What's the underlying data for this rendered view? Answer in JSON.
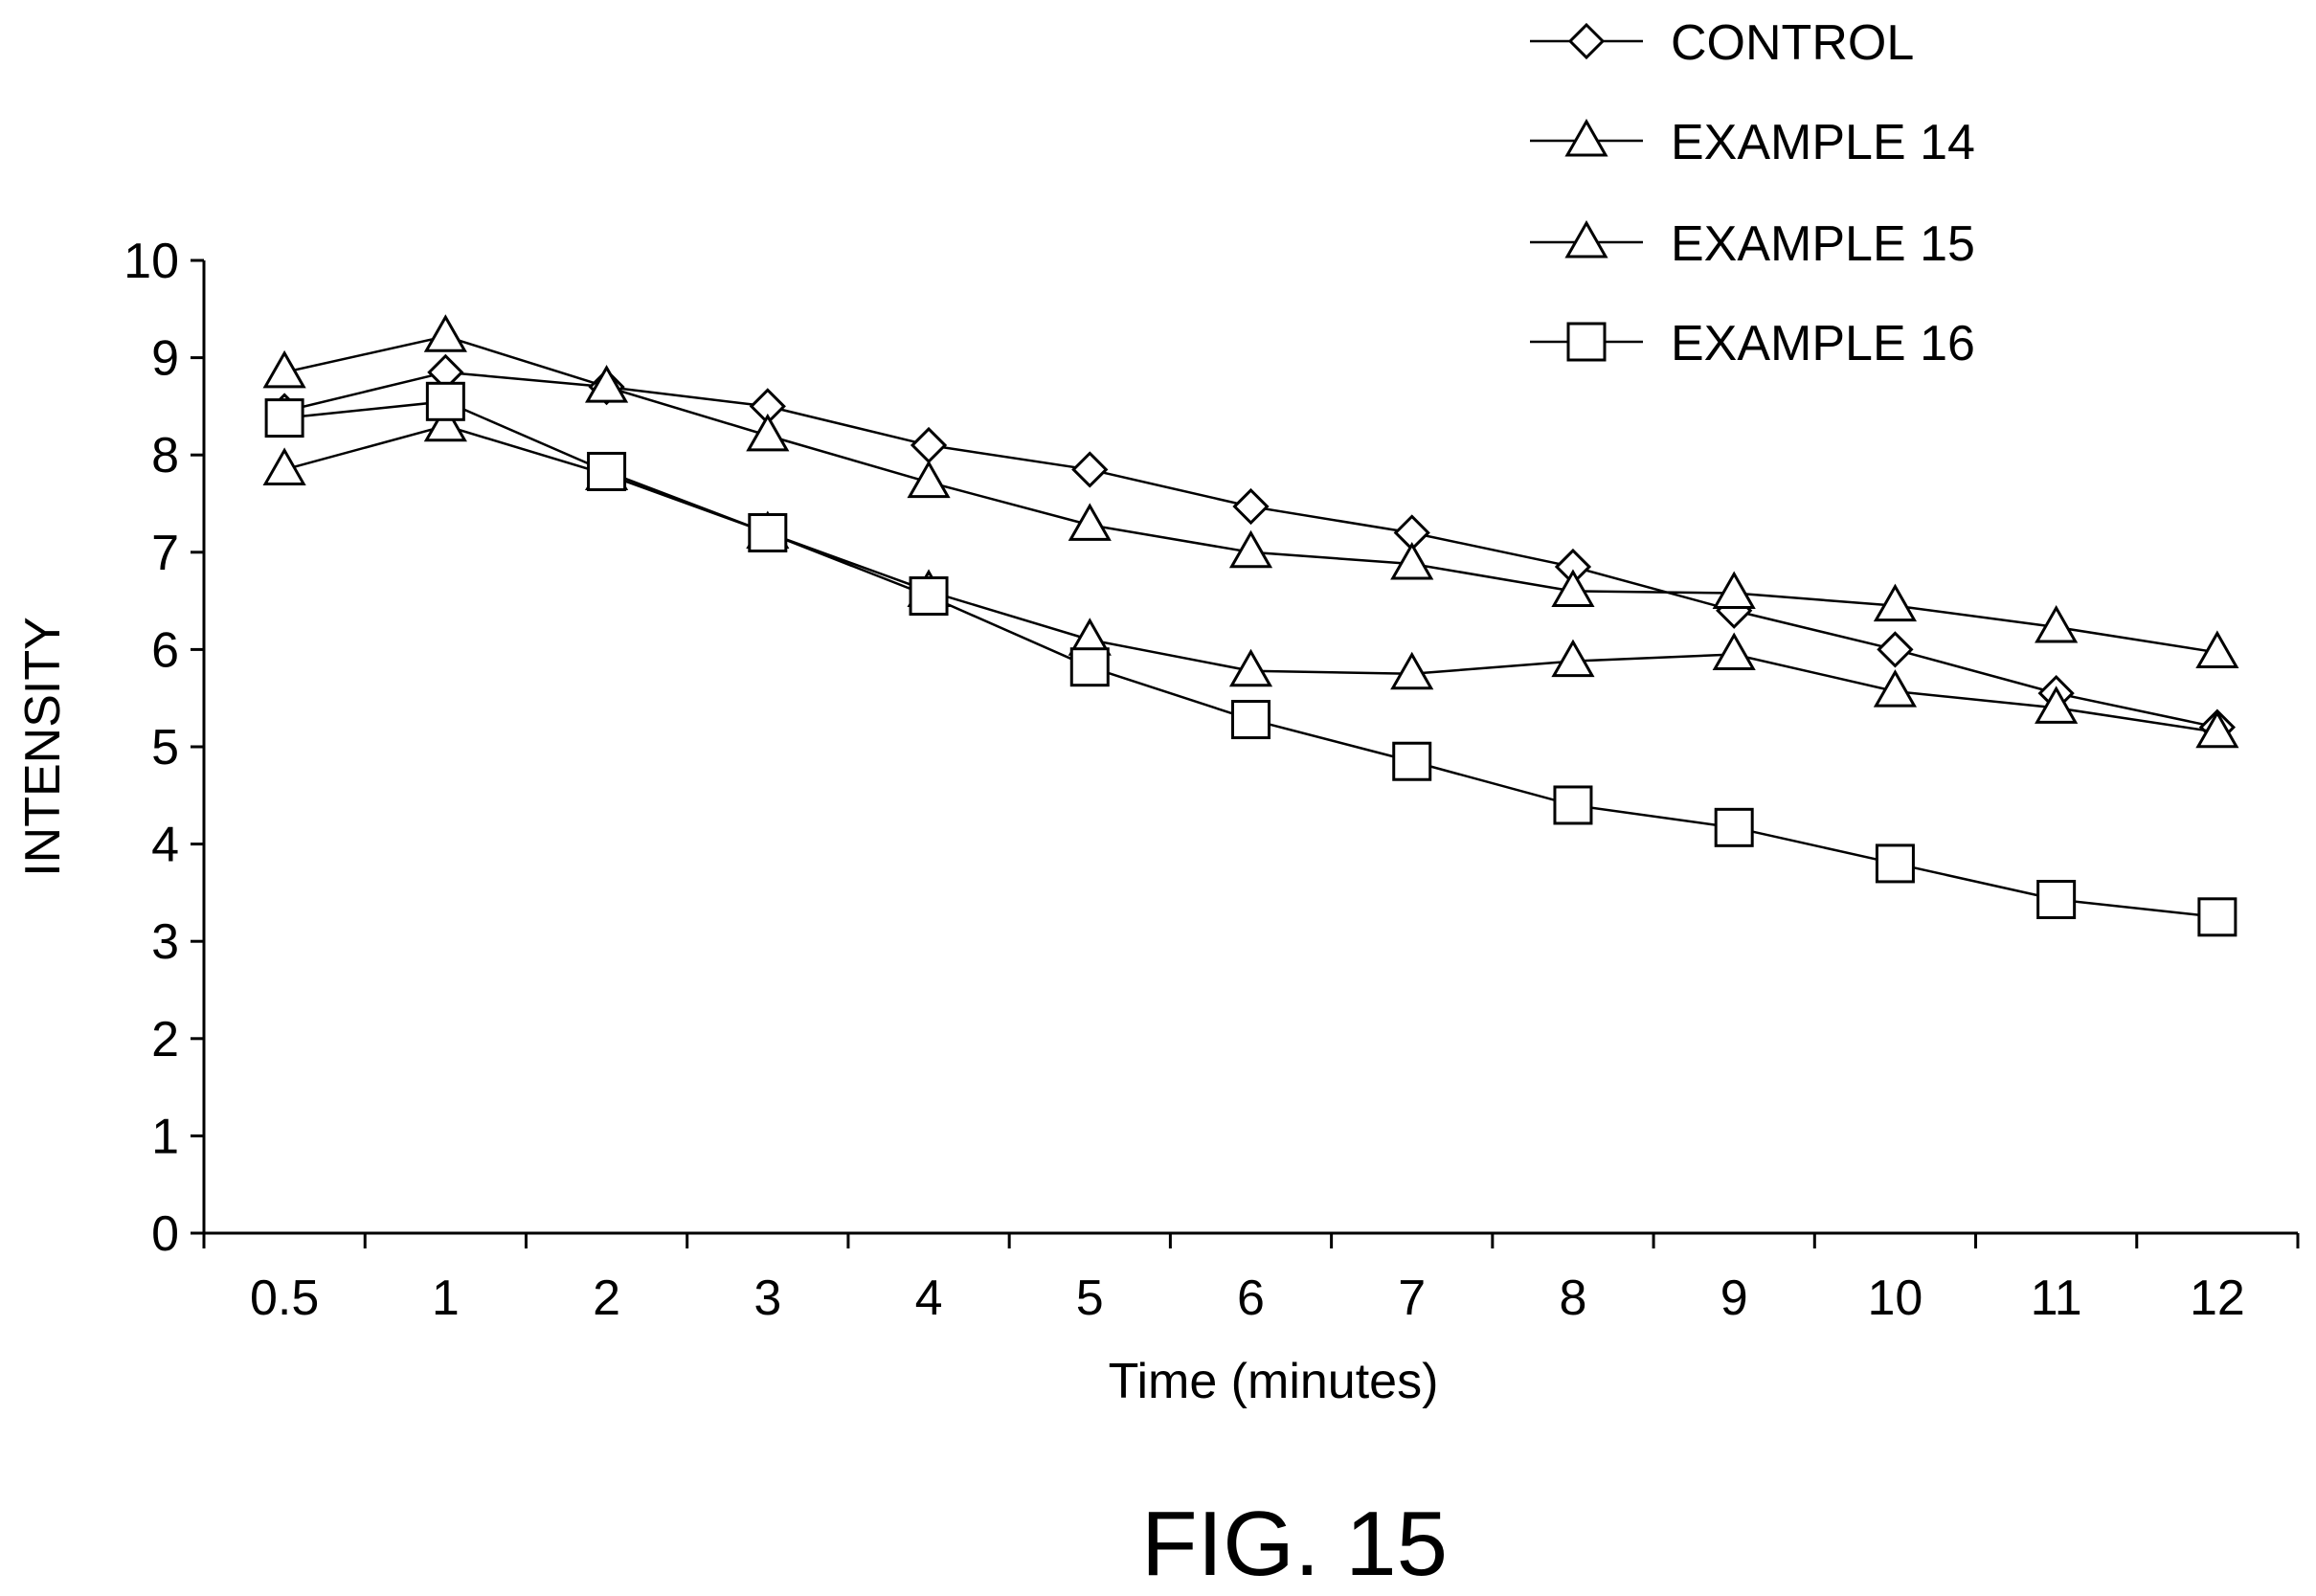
{
  "chart_data": {
    "type": "line",
    "xlabel": "Time (minutes)",
    "ylabel": "INTENSITY",
    "figure_label": "FIG. 15",
    "categories": [
      "0.5",
      "1",
      "2",
      "3",
      "4",
      "5",
      "6",
      "7",
      "8",
      "9",
      "10",
      "11",
      "12"
    ],
    "y_ticks": [
      "0",
      "1",
      "2",
      "3",
      "4",
      "5",
      "6",
      "7",
      "8",
      "9",
      "10"
    ],
    "ylim": [
      0,
      10
    ],
    "grid": false,
    "legend_position": "top-right",
    "series": [
      {
        "name": "CONTROL",
        "marker": "diamond",
        "values": [
          8.45,
          8.85,
          8.7,
          8.5,
          8.1,
          7.85,
          7.47,
          7.2,
          6.85,
          6.4,
          6.0,
          5.55,
          5.2
        ]
      },
      {
        "name": "EXAMPLE 14",
        "marker": "triangle",
        "values": [
          7.85,
          8.3,
          7.8,
          7.2,
          6.6,
          6.1,
          5.78,
          5.75,
          5.88,
          5.95,
          5.57,
          5.4,
          5.15
        ]
      },
      {
        "name": "EXAMPLE 15",
        "marker": "triangle-hatched",
        "values": [
          8.85,
          9.22,
          8.7,
          8.2,
          7.72,
          7.28,
          7.0,
          6.88,
          6.6,
          6.58,
          6.45,
          6.23,
          5.97
        ]
      },
      {
        "name": "EXAMPLE 16",
        "marker": "square",
        "values": [
          8.38,
          8.55,
          7.83,
          7.2,
          6.55,
          5.82,
          5.28,
          4.85,
          4.4,
          4.17,
          3.8,
          3.43,
          3.25
        ]
      }
    ]
  }
}
